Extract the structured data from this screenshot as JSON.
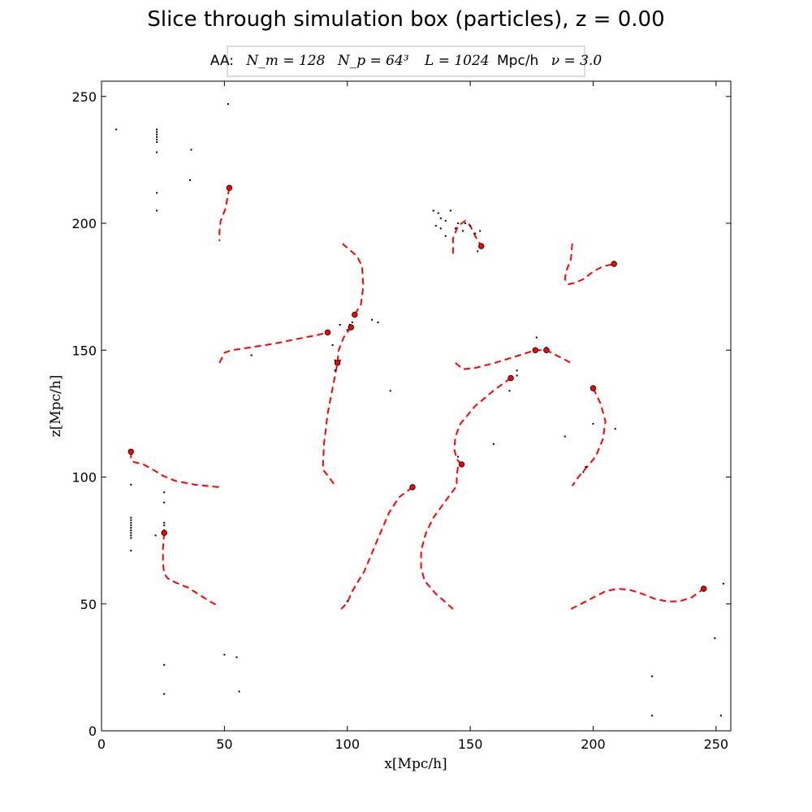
{
  "chart_data": {
    "type": "scatter",
    "title": "Slice through simulation box (particles), z = 0.00",
    "legend": {
      "label": "AA:",
      "Nm": "N_m = 128",
      "Np": "N_p = 64³",
      "L": "L = 1024",
      "L_unit": "Mpc/h",
      "nu": "ν = 3.0",
      "placement": "top-center"
    },
    "xlabel": "x[Mpc/h]",
    "ylabel": "z[Mpc/h]",
    "xlim": [
      0,
      256
    ],
    "ylim": [
      0,
      256
    ],
    "xticks": [
      0,
      50,
      100,
      150,
      200,
      250
    ],
    "yticks": [
      0,
      50,
      100,
      150,
      200,
      250
    ],
    "grid": false,
    "colors": {
      "halo": "#ff0000",
      "filament": "#ff0000",
      "particle": "#000000",
      "axes": "#000000"
    },
    "series": [
      {
        "kind": "particles",
        "points": [
          [
            6,
            237
          ],
          [
            22.5,
            237
          ],
          [
            22.5,
            236
          ],
          [
            22.5,
            235
          ],
          [
            22.5,
            234
          ],
          [
            22.5,
            233
          ],
          [
            22.5,
            232
          ],
          [
            22.5,
            228
          ],
          [
            36.5,
            229
          ],
          [
            36,
            217
          ],
          [
            22.5,
            212
          ],
          [
            22.5,
            205
          ],
          [
            51.5,
            247
          ],
          [
            135,
            205
          ],
          [
            137,
            204
          ],
          [
            138,
            202
          ],
          [
            140,
            201
          ],
          [
            142,
            205
          ],
          [
            144,
            198
          ],
          [
            145,
            200
          ],
          [
            147,
            197
          ],
          [
            148,
            200
          ],
          [
            150,
            199
          ],
          [
            152,
            196
          ],
          [
            154,
            197
          ],
          [
            153,
            189
          ],
          [
            136,
            199
          ],
          [
            138,
            198
          ],
          [
            140,
            195
          ],
          [
            97,
            160
          ],
          [
            101,
            160
          ],
          [
            102,
            161
          ],
          [
            110,
            162
          ],
          [
            112.5,
            161
          ],
          [
            100,
            158
          ],
          [
            94,
            152
          ],
          [
            95,
            146
          ],
          [
            97,
            146
          ],
          [
            95,
            142
          ],
          [
            61,
            148
          ],
          [
            117.5,
            134
          ],
          [
            177,
            155
          ],
          [
            181,
            151
          ],
          [
            169,
            142
          ],
          [
            169,
            140
          ],
          [
            166,
            134
          ],
          [
            200,
            121
          ],
          [
            209,
            119
          ],
          [
            188.5,
            116
          ],
          [
            159.5,
            113
          ],
          [
            145,
            108
          ],
          [
            12,
            97
          ],
          [
            12,
            84
          ],
          [
            12,
            83
          ],
          [
            12,
            82
          ],
          [
            12,
            81
          ],
          [
            12,
            80
          ],
          [
            12,
            79
          ],
          [
            12,
            78
          ],
          [
            12,
            77
          ],
          [
            12,
            76
          ],
          [
            12,
            71
          ],
          [
            22,
            77
          ],
          [
            25.5,
            94
          ],
          [
            25.5,
            90
          ],
          [
            25.5,
            82
          ],
          [
            25.5,
            81
          ],
          [
            25.5,
            79
          ],
          [
            197,
            104
          ],
          [
            196,
            102
          ],
          [
            100,
            51
          ],
          [
            50,
            30
          ],
          [
            55,
            29
          ],
          [
            56,
            15.5
          ],
          [
            25.5,
            26
          ],
          [
            25.5,
            14.5
          ],
          [
            224,
            21.5
          ],
          [
            224,
            6
          ],
          [
            249.5,
            36.5
          ],
          [
            252,
            6
          ],
          [
            253,
            58
          ]
        ]
      },
      {
        "kind": "halos",
        "points": [
          [
            52,
            214
          ],
          [
            154.5,
            191
          ],
          [
            208.5,
            184
          ],
          [
            103,
            164
          ],
          [
            92,
            157
          ],
          [
            101.5,
            159
          ],
          [
            96,
            145
          ],
          [
            176.5,
            150
          ],
          [
            181,
            150
          ],
          [
            166.5,
            139
          ],
          [
            200,
            135
          ],
          [
            12,
            110
          ],
          [
            146.5,
            105
          ],
          [
            126.5,
            96
          ],
          [
            25.5,
            78
          ],
          [
            245,
            56
          ]
        ]
      },
      {
        "kind": "filaments",
        "paths": [
          [
            [
              52,
              214
            ],
            [
              50.5,
              206
            ],
            [
              48.5,
              201
            ],
            [
              48,
              197
            ],
            [
              48,
              193
            ]
          ],
          [
            [
              98,
              192
            ],
            [
              104,
              187
            ],
            [
              106,
              183
            ],
            [
              106.5,
              175
            ],
            [
              105.5,
              168
            ],
            [
              103,
              164
            ]
          ],
          [
            [
              48,
              145
            ],
            [
              50,
              149
            ],
            [
              53,
              150
            ],
            [
              60,
              151
            ],
            [
              70,
              152.5
            ],
            [
              80,
              154.5
            ],
            [
              88,
              156
            ],
            [
              92,
              157
            ]
          ],
          [
            [
              101.5,
              159
            ],
            [
              98.5,
              155
            ],
            [
              96.5,
              150
            ],
            [
              96,
              145
            ],
            [
              94,
              135
            ],
            [
              92,
              125
            ],
            [
              90.5,
              113
            ],
            [
              90,
              103
            ],
            [
              92.5,
              100
            ],
            [
              95.5,
              96
            ]
          ],
          [
            [
              143,
              188
            ],
            [
              143,
              194
            ],
            [
              145,
              199
            ],
            [
              148,
              201
            ],
            [
              150,
              199
            ],
            [
              152,
              195
            ],
            [
              154.5,
              191
            ]
          ],
          [
            [
              191.5,
              192
            ],
            [
              191,
              186
            ],
            [
              189,
              181
            ],
            [
              188.5,
              178
            ],
            [
              190,
              176
            ],
            [
              192.5,
              176.5
            ],
            [
              196,
              178
            ],
            [
              200,
              181
            ],
            [
              204,
              183
            ],
            [
              208.5,
              184
            ]
          ],
          [
            [
              144,
              145
            ],
            [
              147,
              142.5
            ],
            [
              152,
              143
            ],
            [
              160,
              145
            ],
            [
              170,
              148
            ],
            [
              176.5,
              150
            ],
            [
              181,
              150
            ],
            [
              187,
              147
            ],
            [
              191,
              145
            ]
          ],
          [
            [
              166.5,
              139
            ],
            [
              160,
              134.5
            ],
            [
              152,
              128
            ],
            [
              146,
              121
            ],
            [
              144,
              116
            ],
            [
              143.5,
              111
            ],
            [
              144.5,
              107
            ],
            [
              146.5,
              105
            ]
          ],
          [
            [
              200,
              135
            ],
            [
              203,
              129
            ],
            [
              205,
              122
            ],
            [
              204,
              115
            ],
            [
              201,
              108
            ],
            [
              197.5,
              104
            ],
            [
              194,
              100
            ],
            [
              191.5,
              96.5
            ]
          ],
          [
            [
              12,
              110
            ],
            [
              12,
              107
            ],
            [
              13,
              106
            ],
            [
              17,
              105
            ],
            [
              20,
              103.5
            ],
            [
              25,
              100.5
            ],
            [
              30,
              98.5
            ],
            [
              38,
              97
            ],
            [
              48,
              96
            ]
          ],
          [
            [
              126.5,
              96
            ],
            [
              121,
              92
            ],
            [
              117,
              86
            ],
            [
              113,
              77
            ],
            [
              107,
              63
            ],
            [
              102,
              55
            ],
            [
              100,
              50.5
            ],
            [
              97.5,
              48
            ]
          ],
          [
            [
              145,
              104
            ],
            [
              144.5,
              100.5
            ],
            [
              144.5,
              96.5
            ],
            [
              141,
              92
            ],
            [
              135,
              84
            ],
            [
              132,
              78
            ],
            [
              130,
              71
            ],
            [
              130,
              64
            ],
            [
              131.5,
              59
            ],
            [
              136,
              54
            ],
            [
              139,
              51.5
            ],
            [
              143,
              48
            ]
          ],
          [
            [
              25.5,
              78
            ],
            [
              25,
              72
            ],
            [
              25,
              66
            ],
            [
              25.5,
              62
            ],
            [
              27,
              60
            ],
            [
              30,
              58.5
            ],
            [
              35,
              56.5
            ],
            [
              40,
              53.5
            ],
            [
              44,
              51
            ],
            [
              48,
              49
            ]
          ],
          [
            [
              191,
              48
            ],
            [
              195,
              50
            ],
            [
              200,
              52.5
            ],
            [
              205,
              55
            ],
            [
              210,
              56
            ],
            [
              215,
              55.5
            ],
            [
              220,
              54
            ],
            [
              225,
              52
            ],
            [
              230,
              51
            ],
            [
              235,
              51
            ],
            [
              240,
              52.5
            ],
            [
              245,
              56
            ]
          ]
        ]
      }
    ]
  }
}
